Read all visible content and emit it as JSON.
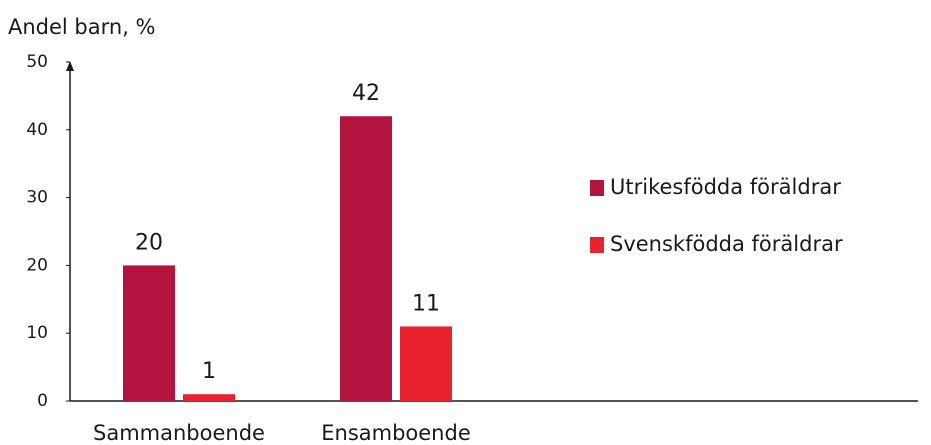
{
  "chart_data": {
    "type": "bar",
    "y_label": "Andel barn, %",
    "categories": [
      "Sammanboende",
      "Ensamboende"
    ],
    "series": [
      {
        "name": "Utrikesfödda föräldrar",
        "color": "#b3133f",
        "values": [
          20,
          42
        ]
      },
      {
        "name": "Svenskfödda föräldrar",
        "color": "#e8232f",
        "values": [
          1,
          11
        ]
      }
    ],
    "ylim": [
      0,
      50
    ],
    "yticks": [
      0,
      10,
      20,
      30,
      40,
      50
    ],
    "grid": false,
    "legend": "right"
  }
}
